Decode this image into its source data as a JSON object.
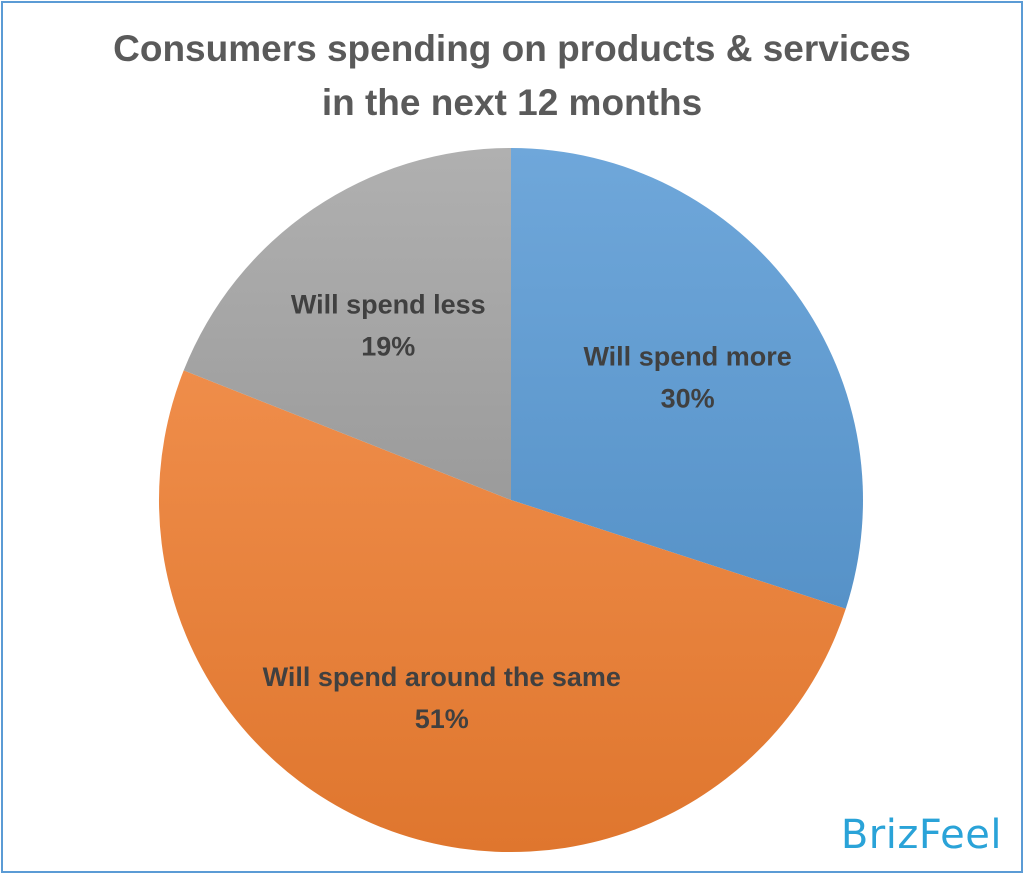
{
  "chart_data": {
    "type": "pie",
    "title_lines": [
      "Consumers spending on products & services",
      "in the next 12 months"
    ],
    "slices": [
      {
        "name": "Will spend more",
        "value": 30,
        "label": "30%",
        "color": "#5b9bd5"
      },
      {
        "name": "Will spend around the same",
        "value": 51,
        "label": "51%",
        "color": "#ed7d31"
      },
      {
        "name": "Will spend less",
        "value": 19,
        "label": "19%",
        "color": "#a5a5a5"
      }
    ],
    "start_angle_deg": 0,
    "direction": "clockwise"
  },
  "brand": {
    "text": "BrizFeel",
    "color": "#2aa3d8"
  }
}
